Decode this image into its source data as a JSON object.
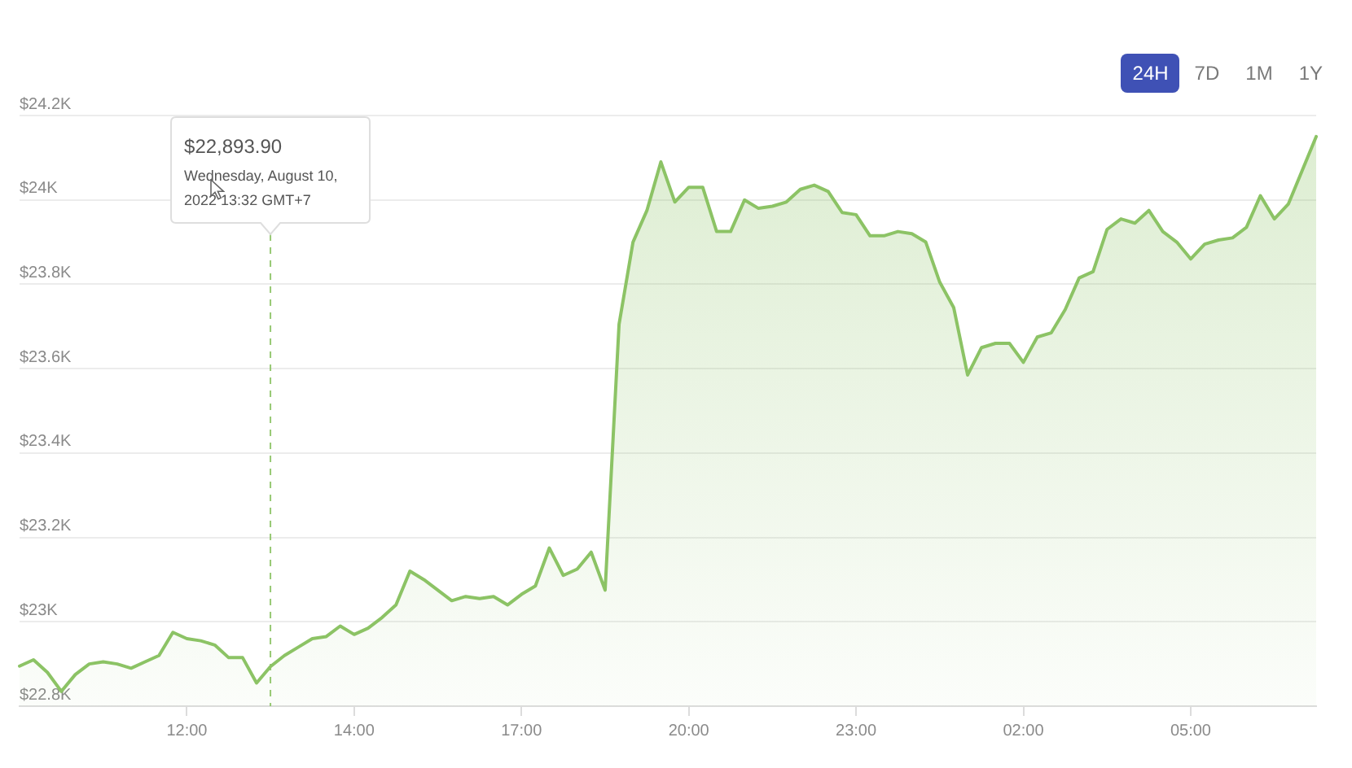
{
  "chart_data": {
    "type": "area",
    "categories": [
      null,
      null,
      null,
      null,
      null,
      null,
      null,
      null,
      null,
      null,
      null,
      null,
      "12:00",
      null,
      null,
      null,
      null,
      null,
      null,
      null,
      null,
      null,
      null,
      null,
      "14:00",
      null,
      null,
      null,
      null,
      null,
      null,
      null,
      null,
      null,
      null,
      null,
      "17:00",
      null,
      null,
      null,
      null,
      null,
      null,
      null,
      null,
      null,
      null,
      null,
      "20:00",
      null,
      null,
      null,
      null,
      null,
      null,
      null,
      null,
      null,
      null,
      null,
      "23:00",
      null,
      null,
      null,
      null,
      null,
      null,
      null,
      null,
      null,
      null,
      null,
      "02:00",
      null,
      null,
      null,
      null,
      null,
      null,
      null,
      null,
      null,
      null,
      null,
      "05:00",
      null,
      null,
      null,
      null,
      null,
      null,
      null,
      null,
      null
    ],
    "values": [
      22895,
      22910,
      22880,
      22835,
      22875,
      22900,
      22905,
      22900,
      22890,
      22905,
      22920,
      22975,
      22960,
      22955,
      22945,
      22915,
      22915,
      22855,
      22893.9,
      22920,
      22940,
      22960,
      22965,
      22990,
      22970,
      22985,
      23010,
      23040,
      23120,
      23100,
      23075,
      23050,
      23060,
      23055,
      23060,
      23040,
      23065,
      23085,
      23175,
      23110,
      23125,
      23165,
      23075,
      23705,
      23900,
      23975,
      24090,
      23995,
      24030,
      24030,
      23925,
      23925,
      24000,
      23980,
      23985,
      23995,
      24025,
      24035,
      24020,
      23970,
      23965,
      23915,
      23915,
      23925,
      23920,
      23900,
      23805,
      23745,
      23585,
      23650,
      23660,
      23660,
      23615,
      23675,
      23685,
      23740,
      23815,
      23830,
      23930,
      23955,
      23945,
      23975,
      23925,
      23900,
      23860,
      23895,
      23905,
      23910,
      23935,
      24010,
      23955,
      23990,
      24070,
      24150
    ],
    "color": "#8cc365",
    "ylim": [
      22800,
      24200
    ],
    "yticks": [
      {
        "value": 22800,
        "label": "$22.8K"
      },
      {
        "value": 23000,
        "label": "$23K"
      },
      {
        "value": 23200,
        "label": "$23.2K"
      },
      {
        "value": 23400,
        "label": "$23.4K"
      },
      {
        "value": 23600,
        "label": "$23.6K"
      },
      {
        "value": 23800,
        "label": "$23.8K"
      },
      {
        "value": 24000,
        "label": "$24K"
      },
      {
        "value": 24200,
        "label": "$24.2K"
      }
    ],
    "grid": "y",
    "annotations": [
      "24H",
      "7D",
      "1M",
      "1Y",
      "$22,893.90\nWednesday, August 10, 2022 13:32 GMT+7"
    ]
  }
}
